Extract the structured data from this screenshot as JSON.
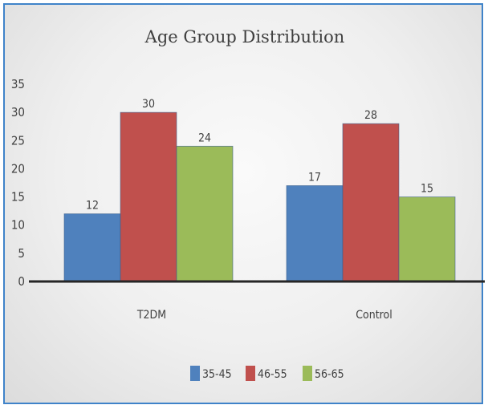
{
  "chart_data": {
    "type": "bar",
    "title": "Age Group Distribution",
    "categories": [
      "T2DM",
      "Control"
    ],
    "series": [
      {
        "name": "35-45",
        "values": [
          12,
          17
        ],
        "color": "#4f81bd"
      },
      {
        "name": "46-55",
        "values": [
          30,
          28
        ],
        "color": "#c0504d"
      },
      {
        "name": "56-65",
        "values": [
          24,
          15
        ],
        "color": "#9bbb59"
      }
    ],
    "ylim": [
      0,
      35
    ],
    "yticks": [
      0,
      5,
      10,
      15,
      20,
      25,
      30,
      35
    ],
    "grid": false,
    "data_labels": true,
    "legend": "bottom"
  }
}
